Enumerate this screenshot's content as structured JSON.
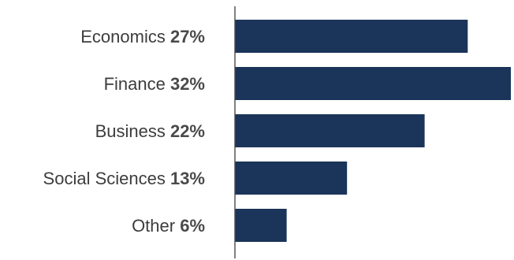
{
  "chart_data": {
    "type": "bar",
    "orientation": "horizontal",
    "categories": [
      "Economics",
      "Finance",
      "Business",
      "Social Sciences",
      "Other"
    ],
    "values": [
      27,
      32,
      22,
      13,
      6
    ],
    "value_labels": [
      "27%",
      "32%",
      "22%",
      "13%",
      "6%"
    ],
    "unit": "%",
    "title": "",
    "xlabel": "",
    "ylabel": "",
    "xlim": [
      0,
      32
    ],
    "grid": false,
    "legend": "none",
    "bar_color": "#1b3459"
  }
}
